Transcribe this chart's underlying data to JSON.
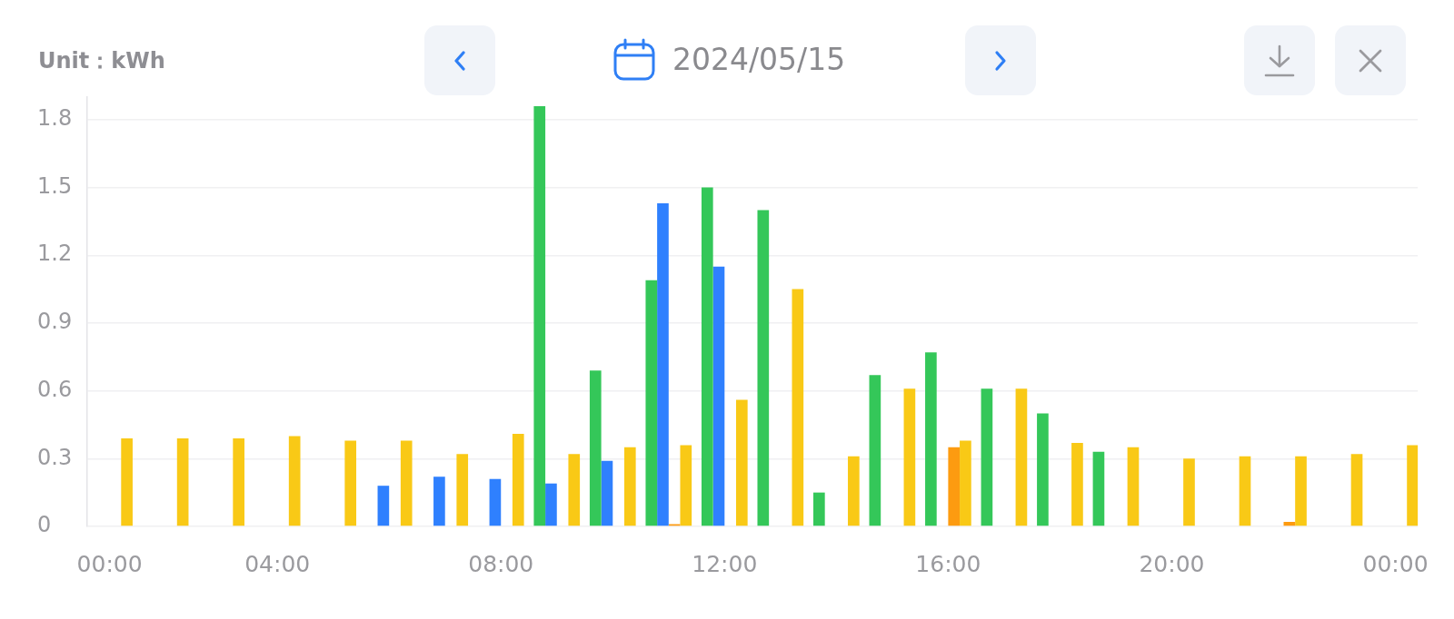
{
  "chart_data": {
    "type": "bar",
    "title": "2024/05/15",
    "ylabel": "Unit：kWh",
    "x": [
      1,
      2,
      3,
      4,
      5,
      6,
      7,
      8,
      9,
      10,
      11,
      12,
      13,
      14,
      15,
      16,
      17,
      18,
      19,
      20,
      21,
      22,
      23,
      24
    ],
    "series": [
      {
        "color": "#34c759",
        "values": [
          null,
          null,
          null,
          null,
          null,
          null,
          null,
          null,
          1.86,
          0.69,
          1.09,
          1.5,
          1.4,
          0.15,
          0.67,
          0.77,
          0.61,
          0.5,
          0.33,
          null,
          null,
          null,
          null,
          null
        ]
      },
      {
        "color": "#2f80fe",
        "values": [
          null,
          null,
          null,
          null,
          null,
          0.18,
          0.22,
          0.21,
          0.19,
          0.29,
          1.43,
          1.15,
          null,
          null,
          null,
          null,
          null,
          null,
          null,
          null,
          null,
          null,
          null,
          null
        ]
      },
      {
        "color": "#fd9b10",
        "values": [
          null,
          null,
          null,
          null,
          null,
          null,
          null,
          null,
          null,
          null,
          0.01,
          null,
          null,
          null,
          null,
          0.35,
          null,
          null,
          null,
          null,
          null,
          0.02,
          null,
          null
        ]
      },
      {
        "color": "#f9c916",
        "values": [
          0.39,
          0.39,
          0.39,
          0.4,
          0.38,
          0.38,
          0.32,
          0.41,
          0.32,
          0.35,
          0.36,
          0.56,
          1.05,
          0.31,
          0.61,
          0.38,
          0.61,
          0.37,
          0.35,
          0.3,
          0.31,
          0.31,
          0.32,
          0.36
        ]
      }
    ],
    "xlim": [
      0.6,
      24.4
    ],
    "xticks": [
      {
        "value": 1,
        "label": "00:00"
      },
      {
        "value": 4,
        "label": "04:00"
      },
      {
        "value": 8,
        "label": "08:00"
      },
      {
        "value": 12,
        "label": "12:00"
      },
      {
        "value": 16,
        "label": "16:00"
      },
      {
        "value": 20,
        "label": "20:00"
      },
      {
        "value": 24,
        "label": "00:00"
      }
    ],
    "ylim": [
      0,
      1.9
    ],
    "yticks": [
      0,
      0.3,
      0.6,
      0.9,
      1.2,
      1.5,
      1.8
    ],
    "grid": "y",
    "legend": false
  }
}
